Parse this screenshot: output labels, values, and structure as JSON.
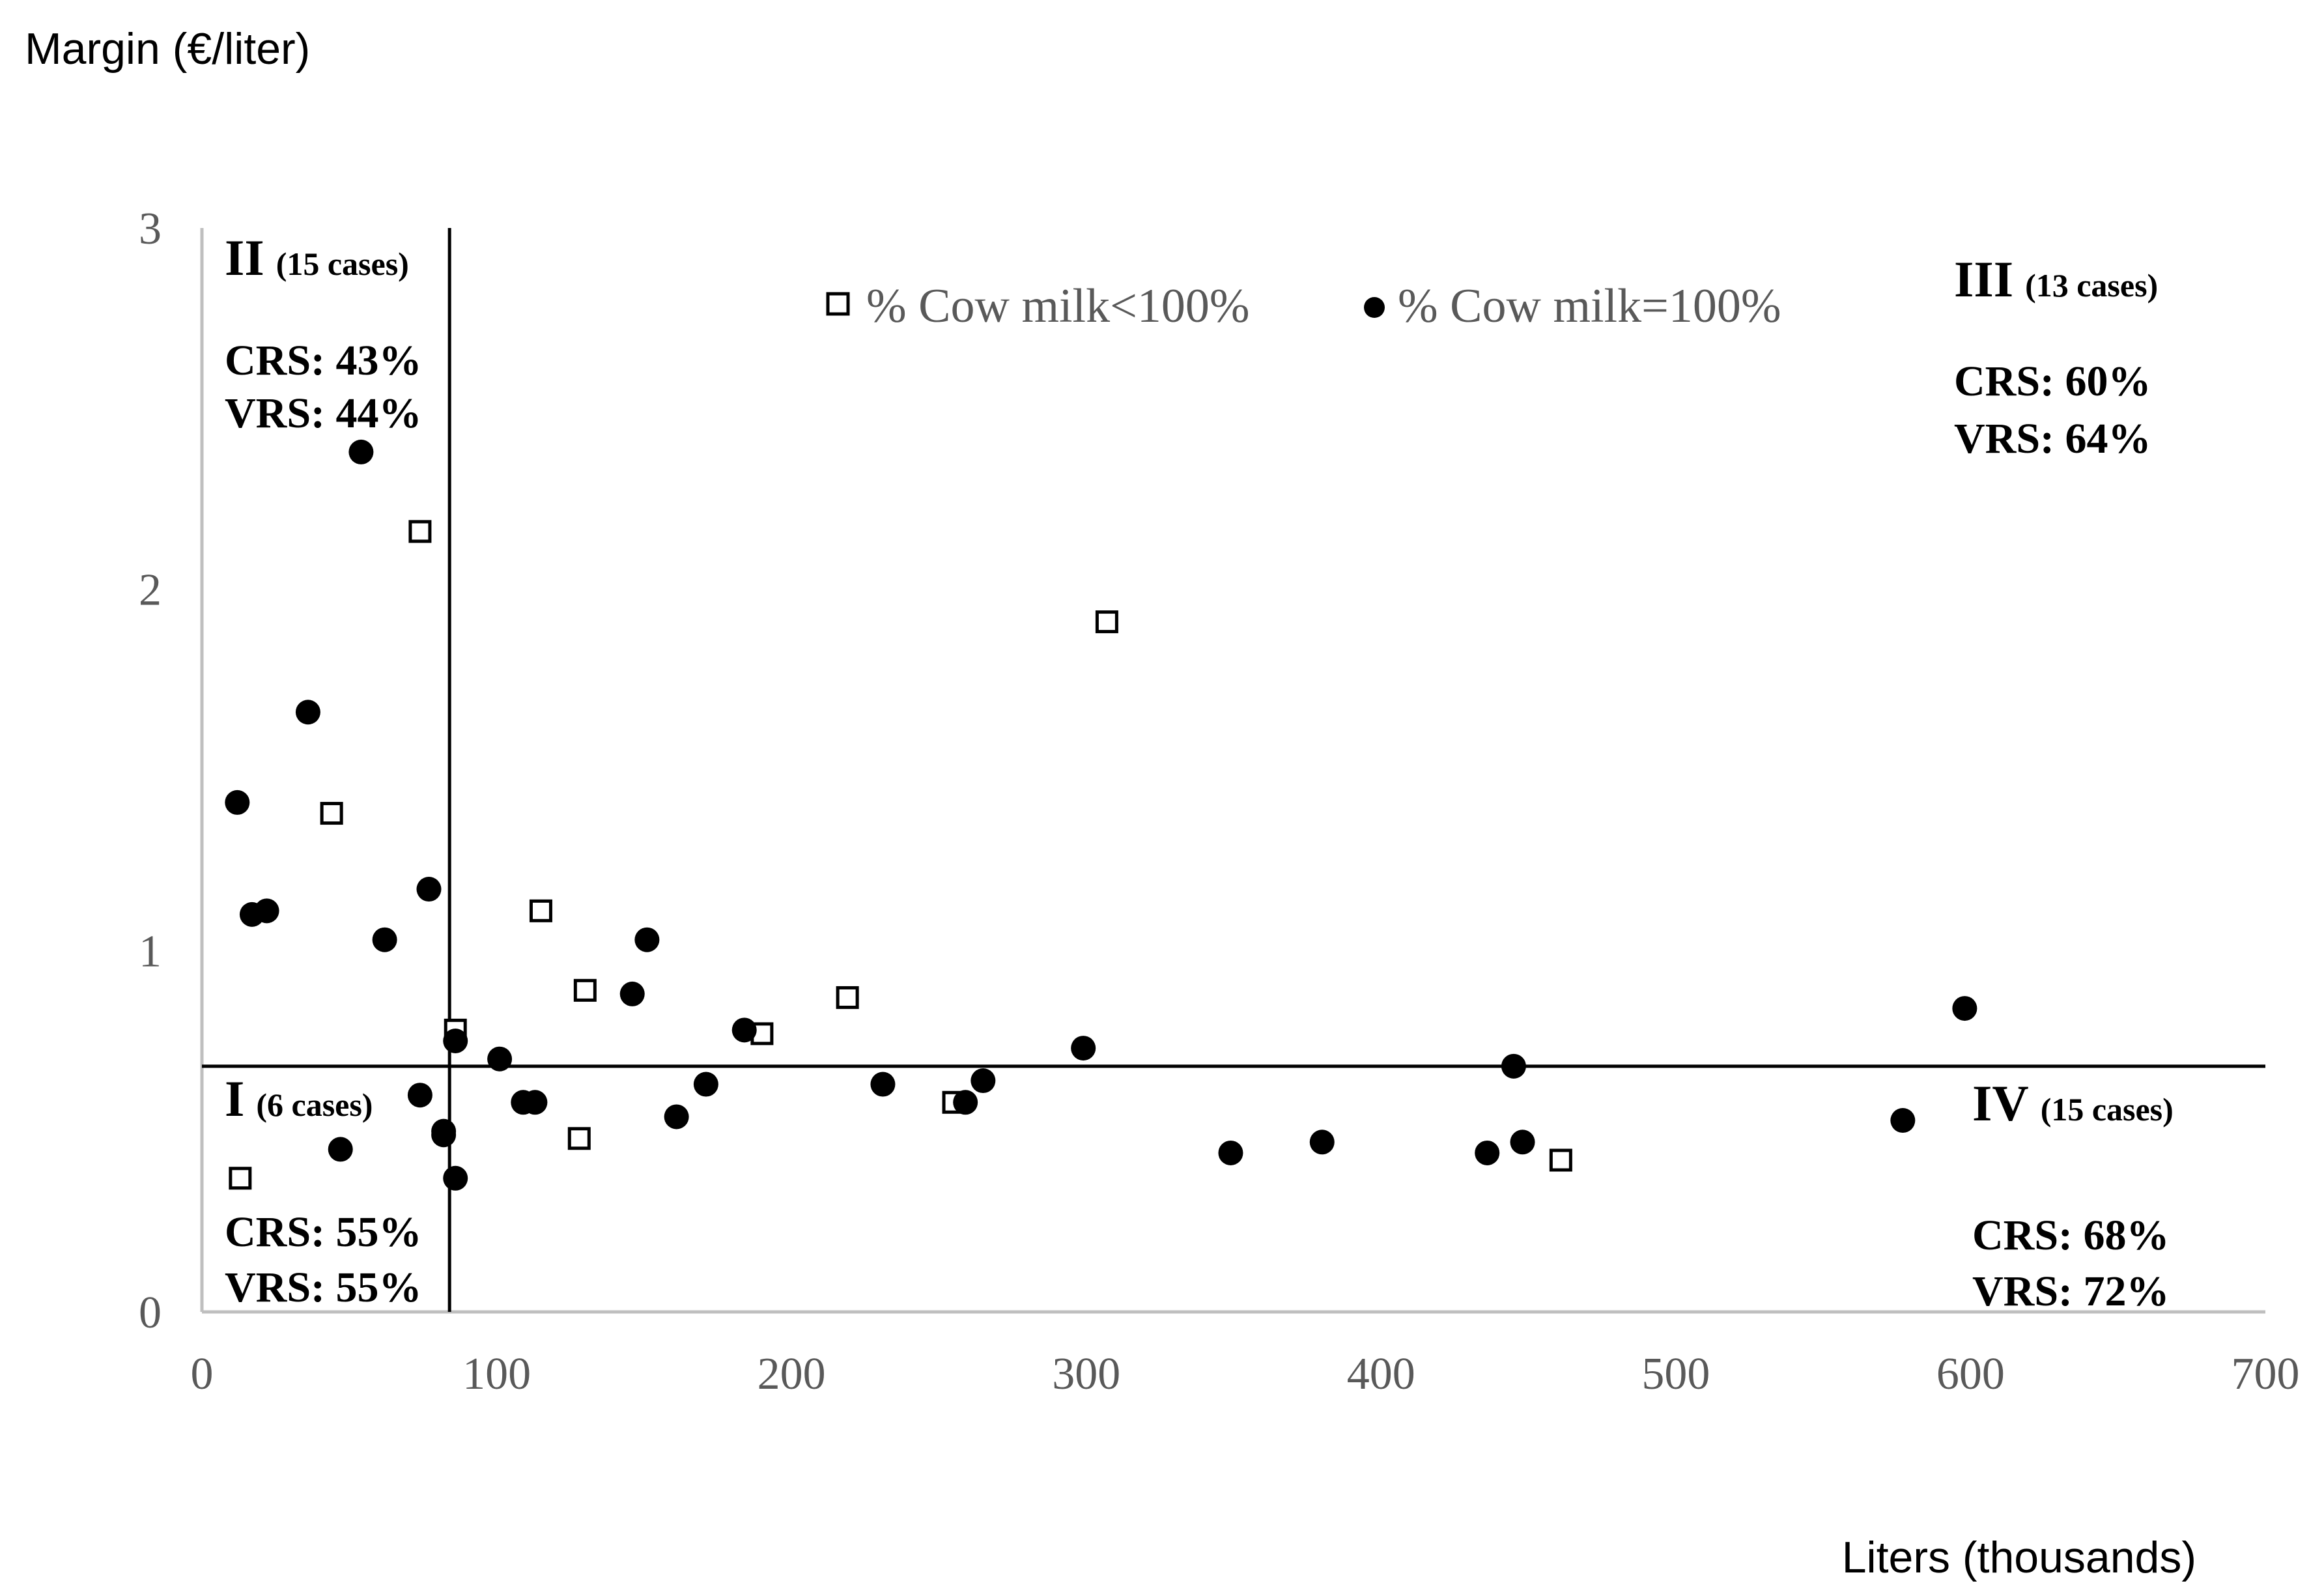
{
  "chart_data": {
    "type": "scatter",
    "title": "",
    "xlabel": "Liters (thousands)",
    "ylabel": "Margin (€/liter)",
    "xlim": [
      0,
      700
    ],
    "ylim": [
      0,
      3
    ],
    "x_ticks": [
      "0",
      "100",
      "200",
      "300",
      "400",
      "500",
      "600",
      "700"
    ],
    "y_ticks": [
      "0",
      "1",
      "2",
      "3"
    ],
    "grid": false,
    "legend_position": "top-center",
    "reference_lines": {
      "x": 84,
      "y": 0.68
    },
    "series": [
      {
        "name": "% Cow milk<100%",
        "marker": "square-open",
        "points": [
          {
            "x": 74,
            "y": 2.16
          },
          {
            "x": 307,
            "y": 1.91
          },
          {
            "x": 44,
            "y": 1.38
          },
          {
            "x": 115,
            "y": 1.11
          },
          {
            "x": 130,
            "y": 0.89
          },
          {
            "x": 219,
            "y": 0.87
          },
          {
            "x": 86,
            "y": 0.78
          },
          {
            "x": 190,
            "y": 0.77
          },
          {
            "x": 255,
            "y": 0.58
          },
          {
            "x": 128,
            "y": 0.48
          },
          {
            "x": 13,
            "y": 0.37
          },
          {
            "x": 461,
            "y": 0.42
          }
        ]
      },
      {
        "name": "% Cow milk=100%",
        "marker": "circle-filled",
        "points": [
          {
            "x": 54,
            "y": 2.38
          },
          {
            "x": 36,
            "y": 1.66
          },
          {
            "x": 12,
            "y": 1.41
          },
          {
            "x": 17,
            "y": 1.1
          },
          {
            "x": 22,
            "y": 1.11
          },
          {
            "x": 77,
            "y": 1.17
          },
          {
            "x": 62,
            "y": 1.03
          },
          {
            "x": 151,
            "y": 1.03
          },
          {
            "x": 146,
            "y": 0.88
          },
          {
            "x": 184,
            "y": 0.78
          },
          {
            "x": 86,
            "y": 0.75
          },
          {
            "x": 101,
            "y": 0.7
          },
          {
            "x": 299,
            "y": 0.73
          },
          {
            "x": 598,
            "y": 0.84
          },
          {
            "x": 445,
            "y": 0.68
          },
          {
            "x": 171,
            "y": 0.63
          },
          {
            "x": 231,
            "y": 0.63
          },
          {
            "x": 265,
            "y": 0.64
          },
          {
            "x": 74,
            "y": 0.6
          },
          {
            "x": 109,
            "y": 0.58
          },
          {
            "x": 113,
            "y": 0.58
          },
          {
            "x": 259,
            "y": 0.58
          },
          {
            "x": 161,
            "y": 0.54
          },
          {
            "x": 82,
            "y": 0.5
          },
          {
            "x": 82,
            "y": 0.49
          },
          {
            "x": 47,
            "y": 0.45
          },
          {
            "x": 86,
            "y": 0.37
          },
          {
            "x": 349,
            "y": 0.44
          },
          {
            "x": 380,
            "y": 0.47
          },
          {
            "x": 436,
            "y": 0.44
          },
          {
            "x": 448,
            "y": 0.47
          },
          {
            "x": 577,
            "y": 0.53
          }
        ]
      }
    ],
    "quadrants": [
      {
        "numeral": "II",
        "cases": "(15 cases)",
        "crs": "CRS: 43%",
        "vrs": "VRS: 44%"
      },
      {
        "numeral": "III",
        "cases": "(13 cases)",
        "crs": "CRS: 60%",
        "vrs": "VRS: 64%"
      },
      {
        "numeral": "I",
        "cases": "(6 cases)",
        "crs": "CRS: 55%",
        "vrs": "VRS: 55%"
      },
      {
        "numeral": "IV",
        "cases": "(15 cases)",
        "crs": "CRS: 68%",
        "vrs": "VRS: 72%"
      }
    ]
  }
}
